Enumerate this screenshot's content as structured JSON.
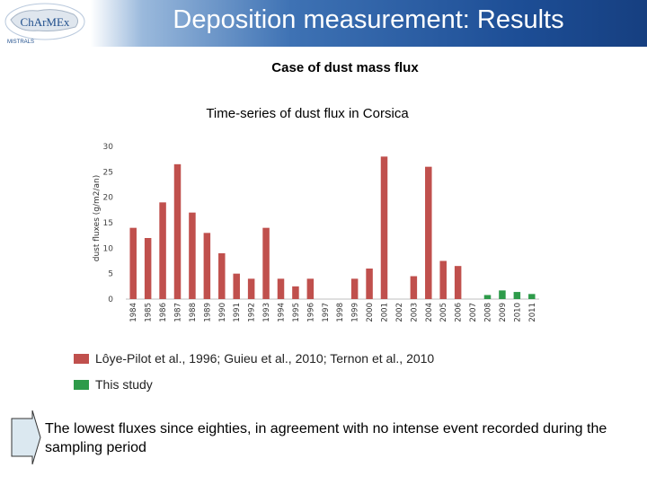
{
  "header": {
    "logo_text": "ChArMEx",
    "logo_subtext": "MISTRALS",
    "title": "Deposition measurement: Results"
  },
  "subtitle": "Case of dust mass flux",
  "chart_title": "Time-series of dust flux in Corsica",
  "chart_data": {
    "type": "bar",
    "title": "Time-series of dust flux in Corsica",
    "xlabel": "",
    "ylabel": "dust fluxes (g/m2/an)",
    "ylim": [
      0,
      30
    ],
    "yticks": [
      0,
      5,
      10,
      15,
      20,
      25,
      30
    ],
    "grid": false,
    "categories": [
      "1984",
      "1985",
      "1986",
      "1987",
      "1988",
      "1989",
      "1990",
      "1991",
      "1992",
      "1993",
      "1994",
      "1995",
      "1996",
      "1997",
      "1998",
      "1999",
      "2000",
      "2001",
      "2002",
      "2003",
      "2004",
      "2005",
      "2006",
      "2007",
      "2008",
      "2009",
      "2010",
      "2011"
    ],
    "series": [
      {
        "name": "Lôye-Pilot et al., 1996; Guieu et al., 2010; Ternon et al., 2010",
        "color": "#c0504d",
        "values": [
          14,
          12,
          19,
          26.5,
          17,
          13,
          9,
          5,
          4,
          14,
          4,
          2.5,
          4,
          null,
          null,
          4,
          6,
          28,
          null,
          4.5,
          26,
          7.5,
          6.5,
          null,
          null,
          null,
          null,
          null
        ]
      },
      {
        "name": "This study",
        "color": "#2e9b4a",
        "values": [
          null,
          null,
          null,
          null,
          null,
          null,
          null,
          null,
          null,
          null,
          null,
          null,
          null,
          null,
          null,
          null,
          null,
          null,
          null,
          null,
          null,
          null,
          null,
          null,
          0.8,
          1.7,
          1.4,
          1.0
        ]
      }
    ]
  },
  "legend": [
    {
      "label": "Lôye-Pilot et al., 1996; Guieu et al., 2010; Ternon et al., 2010",
      "color": "#c0504d"
    },
    {
      "label": "This study",
      "color": "#2e9b4a"
    }
  ],
  "conclusion": "The lowest fluxes since eighties, in agreement with no intense event recorded during the sampling period"
}
